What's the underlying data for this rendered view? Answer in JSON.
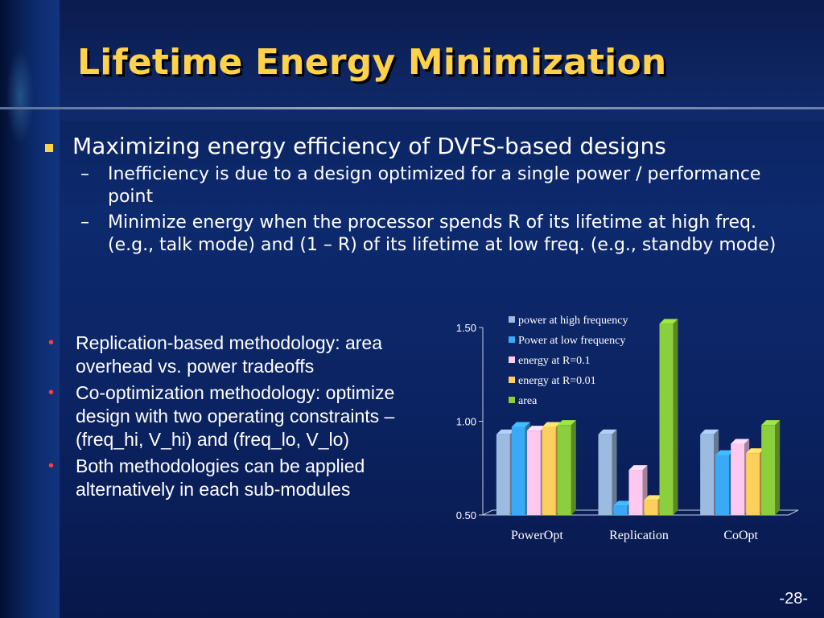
{
  "slide": {
    "title": "Lifetime Energy Minimization",
    "main_bullet": "Maximizing energy efficiency of DVFS-based designs",
    "sub_bullets": [
      "Inefficiency is due to a design optimized for a single power / performance point",
      "Minimize energy when the processor spends R of its lifetime at high freq. (e.g., talk mode) and (1 – R) of its lifetime at  low freq. (e.g., standby mode)"
    ],
    "dash": "–",
    "dot": "•",
    "left_bullets": [
      "Replication-based methodology: area overhead vs. power tradeoffs",
      "Co-optimization methodology: optimize design with two operating constraints – (freq_hi, V_hi) and (freq_lo, V_lo)",
      "Both methodologies can be applied alternatively in each sub-modules"
    ],
    "page_number": "-28-"
  },
  "colors": {
    "title": "#ffd24a",
    "bullet_square": "#ffd24a",
    "bullet_dot": "#ff3d3d"
  },
  "chart_data": {
    "type": "bar",
    "categories": [
      "PowerOpt",
      "Replication",
      "CoOpt"
    ],
    "ylim": [
      0.5,
      1.5
    ],
    "yticks": [
      "0.50",
      "1.00",
      "1.50"
    ],
    "legend_position": "top-right",
    "series": [
      {
        "name": "power at high frequency",
        "color": "#9dbbe0",
        "values": [
          0.93,
          0.93,
          0.93
        ]
      },
      {
        "name": "Power at low frequency",
        "color": "#3aaaf7",
        "values": [
          0.97,
          0.55,
          0.82
        ]
      },
      {
        "name": "energy at R=0.1",
        "color": "#ffc8ef",
        "values": [
          0.95,
          0.74,
          0.88
        ]
      },
      {
        "name": "energy at R=0.01",
        "color": "#ffcf5e",
        "values": [
          0.97,
          0.58,
          0.83
        ]
      },
      {
        "name": "area",
        "color": "#8ccf3c",
        "values": [
          0.98,
          1.52,
          0.98
        ]
      }
    ]
  }
}
